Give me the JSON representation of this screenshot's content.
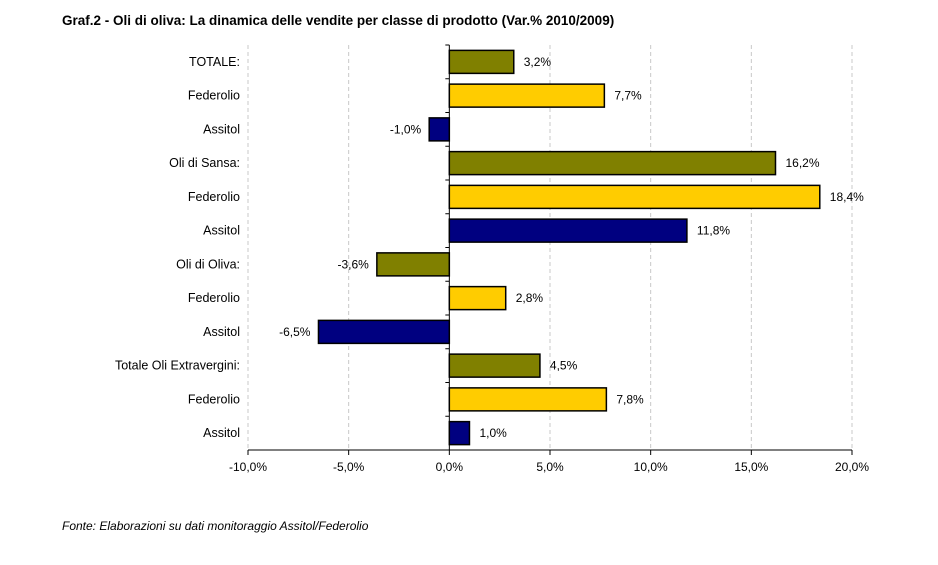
{
  "chart_data": {
    "type": "bar",
    "orientation": "horizontal",
    "title": "Graf.2 - Oli di oliva: La dinamica delle vendite per classe di prodotto (Var.% 2010/2009)",
    "source": "Fonte: Elaborazioni su dati monitoraggio Assitol/Federolio",
    "categories": [
      "TOTALE:",
      "Federolio",
      "Assitol",
      "Oli di Sansa:",
      "Federolio",
      "Assitol",
      "Oli di Oliva:",
      "Federolio",
      "Assitol",
      "Totale Oli Extravergini:",
      "Federolio",
      "Assitol"
    ],
    "values": [
      3.2,
      7.7,
      -1.0,
      16.2,
      18.4,
      11.8,
      -3.6,
      2.8,
      -6.5,
      4.5,
      7.8,
      1.0
    ],
    "value_labels": [
      "3,2%",
      "7,7%",
      "-1,0%",
      "16,2%",
      "18,4%",
      "11,8%",
      "-3,6%",
      "2,8%",
      "-6,5%",
      "4,5%",
      "7,8%",
      "1,0%"
    ],
    "bar_colors": [
      "#808000",
      "#FFCC00",
      "#000080",
      "#808000",
      "#FFCC00",
      "#000080",
      "#808000",
      "#FFCC00",
      "#000080",
      "#808000",
      "#FFCC00",
      "#000080"
    ],
    "xlim": [
      -10,
      20
    ],
    "xticks": [
      -10,
      -5,
      0,
      5,
      10,
      15,
      20
    ],
    "xtick_labels": [
      "-10,0%",
      "-5,0%",
      "0,0%",
      "5,0%",
      "10,0%",
      "15,0%",
      "20,0%"
    ],
    "grid": true
  }
}
